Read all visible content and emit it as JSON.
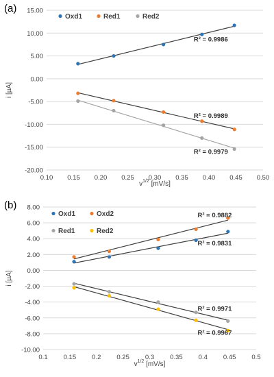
{
  "chart_data": [
    {
      "type": "scatter",
      "panel_label": "(a)",
      "xlabel": "v",
      "xlabel_sup": "1/2",
      "xlabel_unit": " [mV/s]",
      "ylabel": "i [µA]",
      "xlim": [
        0.1,
        0.5
      ],
      "ylim": [
        -20,
        15
      ],
      "x_ticks": [
        0.1,
        0.15,
        0.2,
        0.25,
        0.3,
        0.35,
        0.4,
        0.45,
        0.5
      ],
      "x_tick_labels": [
        "0.10",
        "0.15",
        "0.20",
        "0.25",
        "0.30",
        "0.35",
        "0.40",
        "0.45",
        "0.50"
      ],
      "y_ticks": [
        -20,
        -15,
        -10,
        -5,
        0,
        5,
        10,
        15
      ],
      "y_tick_labels": [
        "-20.00",
        "-15.00",
        "-10.00",
        "-5.00",
        "0.00",
        "5.00",
        "10.00",
        "15.00"
      ],
      "grid": "horizontal",
      "legend": "top-left",
      "series": [
        {
          "name": "Oxd1",
          "color": "#2e75b6",
          "x": [
            0.158,
            0.224,
            0.316,
            0.387,
            0.447
          ],
          "y": [
            3.3,
            5.0,
            7.5,
            9.7,
            11.7
          ],
          "fit_color": "#404040",
          "r2": "R² = 0.9986",
          "r2_at": [
            0.372,
            8.2
          ]
        },
        {
          "name": "Red1",
          "color": "#ed7d31",
          "x": [
            0.158,
            0.224,
            0.316,
            0.387,
            0.447
          ],
          "y": [
            -3.2,
            -4.8,
            -7.3,
            -9.3,
            -11.1
          ],
          "fit_color": "#404040",
          "r2": "R² = 0.9989",
          "r2_at": [
            0.372,
            -8.6
          ]
        },
        {
          "name": "Red2",
          "color": "#a5a5a5",
          "x": [
            0.158,
            0.224,
            0.316,
            0.387,
            0.447
          ],
          "y": [
            -4.9,
            -7.0,
            -10.2,
            -13.0,
            -15.4
          ],
          "fit_color": "#a5a5a5",
          "r2": "R² = 0.9979",
          "r2_at": [
            0.372,
            -16.5
          ]
        }
      ]
    },
    {
      "type": "scatter",
      "panel_label": "(b)",
      "xlabel": "v",
      "xlabel_sup": "1/2",
      "xlabel_unit": " [mV/s]",
      "ylabel": "i [µA]",
      "xlim": [
        0.1,
        0.5
      ],
      "ylim": [
        -10,
        8
      ],
      "x_ticks": [
        0.1,
        0.15,
        0.2,
        0.25,
        0.3,
        0.35,
        0.4,
        0.45,
        0.5
      ],
      "x_tick_labels": [
        "0.1",
        "0.15",
        "0.2",
        "0.25",
        "0.3",
        "0.35",
        "0.4",
        "0.45",
        "0.5"
      ],
      "y_ticks": [
        -10,
        -8,
        -6,
        -4,
        -2,
        0,
        2,
        4,
        6,
        8
      ],
      "y_tick_labels": [
        "-10.00",
        "-8.00",
        "-6.00",
        "-4.00",
        "-2.00",
        "0.00",
        "2.00",
        "4.00",
        "6.00",
        "8.00"
      ],
      "grid": "horizontal",
      "legend": "top-left",
      "series": [
        {
          "name": "Oxd1",
          "color": "#2e75b6",
          "x": [
            0.158,
            0.224,
            0.316,
            0.387,
            0.447
          ],
          "y": [
            1.1,
            1.7,
            2.8,
            3.8,
            4.9
          ],
          "fit_color": "#404040",
          "r2": "R² = 0.9831",
          "r2_at": [
            0.39,
            3.15
          ]
        },
        {
          "name": "Oxd2",
          "color": "#ed7d31",
          "x": [
            0.158,
            0.224,
            0.316,
            0.387,
            0.447
          ],
          "y": [
            1.7,
            2.4,
            3.9,
            5.2,
            6.6
          ],
          "fit_color": "#404040",
          "r2": "R² = 0.9882",
          "r2_at": [
            0.39,
            6.7
          ]
        },
        {
          "name": "Red1",
          "color": "#a5a5a5",
          "x": [
            0.158,
            0.224,
            0.316,
            0.387,
            0.447
          ],
          "y": [
            -1.7,
            -2.7,
            -4.0,
            -5.3,
            -6.4
          ],
          "fit_color": "#404040",
          "r2": "R² = 0.9971",
          "r2_at": [
            0.39,
            -5.1
          ]
        },
        {
          "name": "Red2",
          "color": "#ffc000",
          "x": [
            0.158,
            0.224,
            0.316,
            0.387,
            0.447
          ],
          "y": [
            -2.2,
            -3.2,
            -4.9,
            -6.3,
            -7.6
          ],
          "fit_color": "#404040",
          "r2": "R² = 0.9967",
          "r2_at": [
            0.39,
            -8.15
          ]
        }
      ]
    }
  ]
}
